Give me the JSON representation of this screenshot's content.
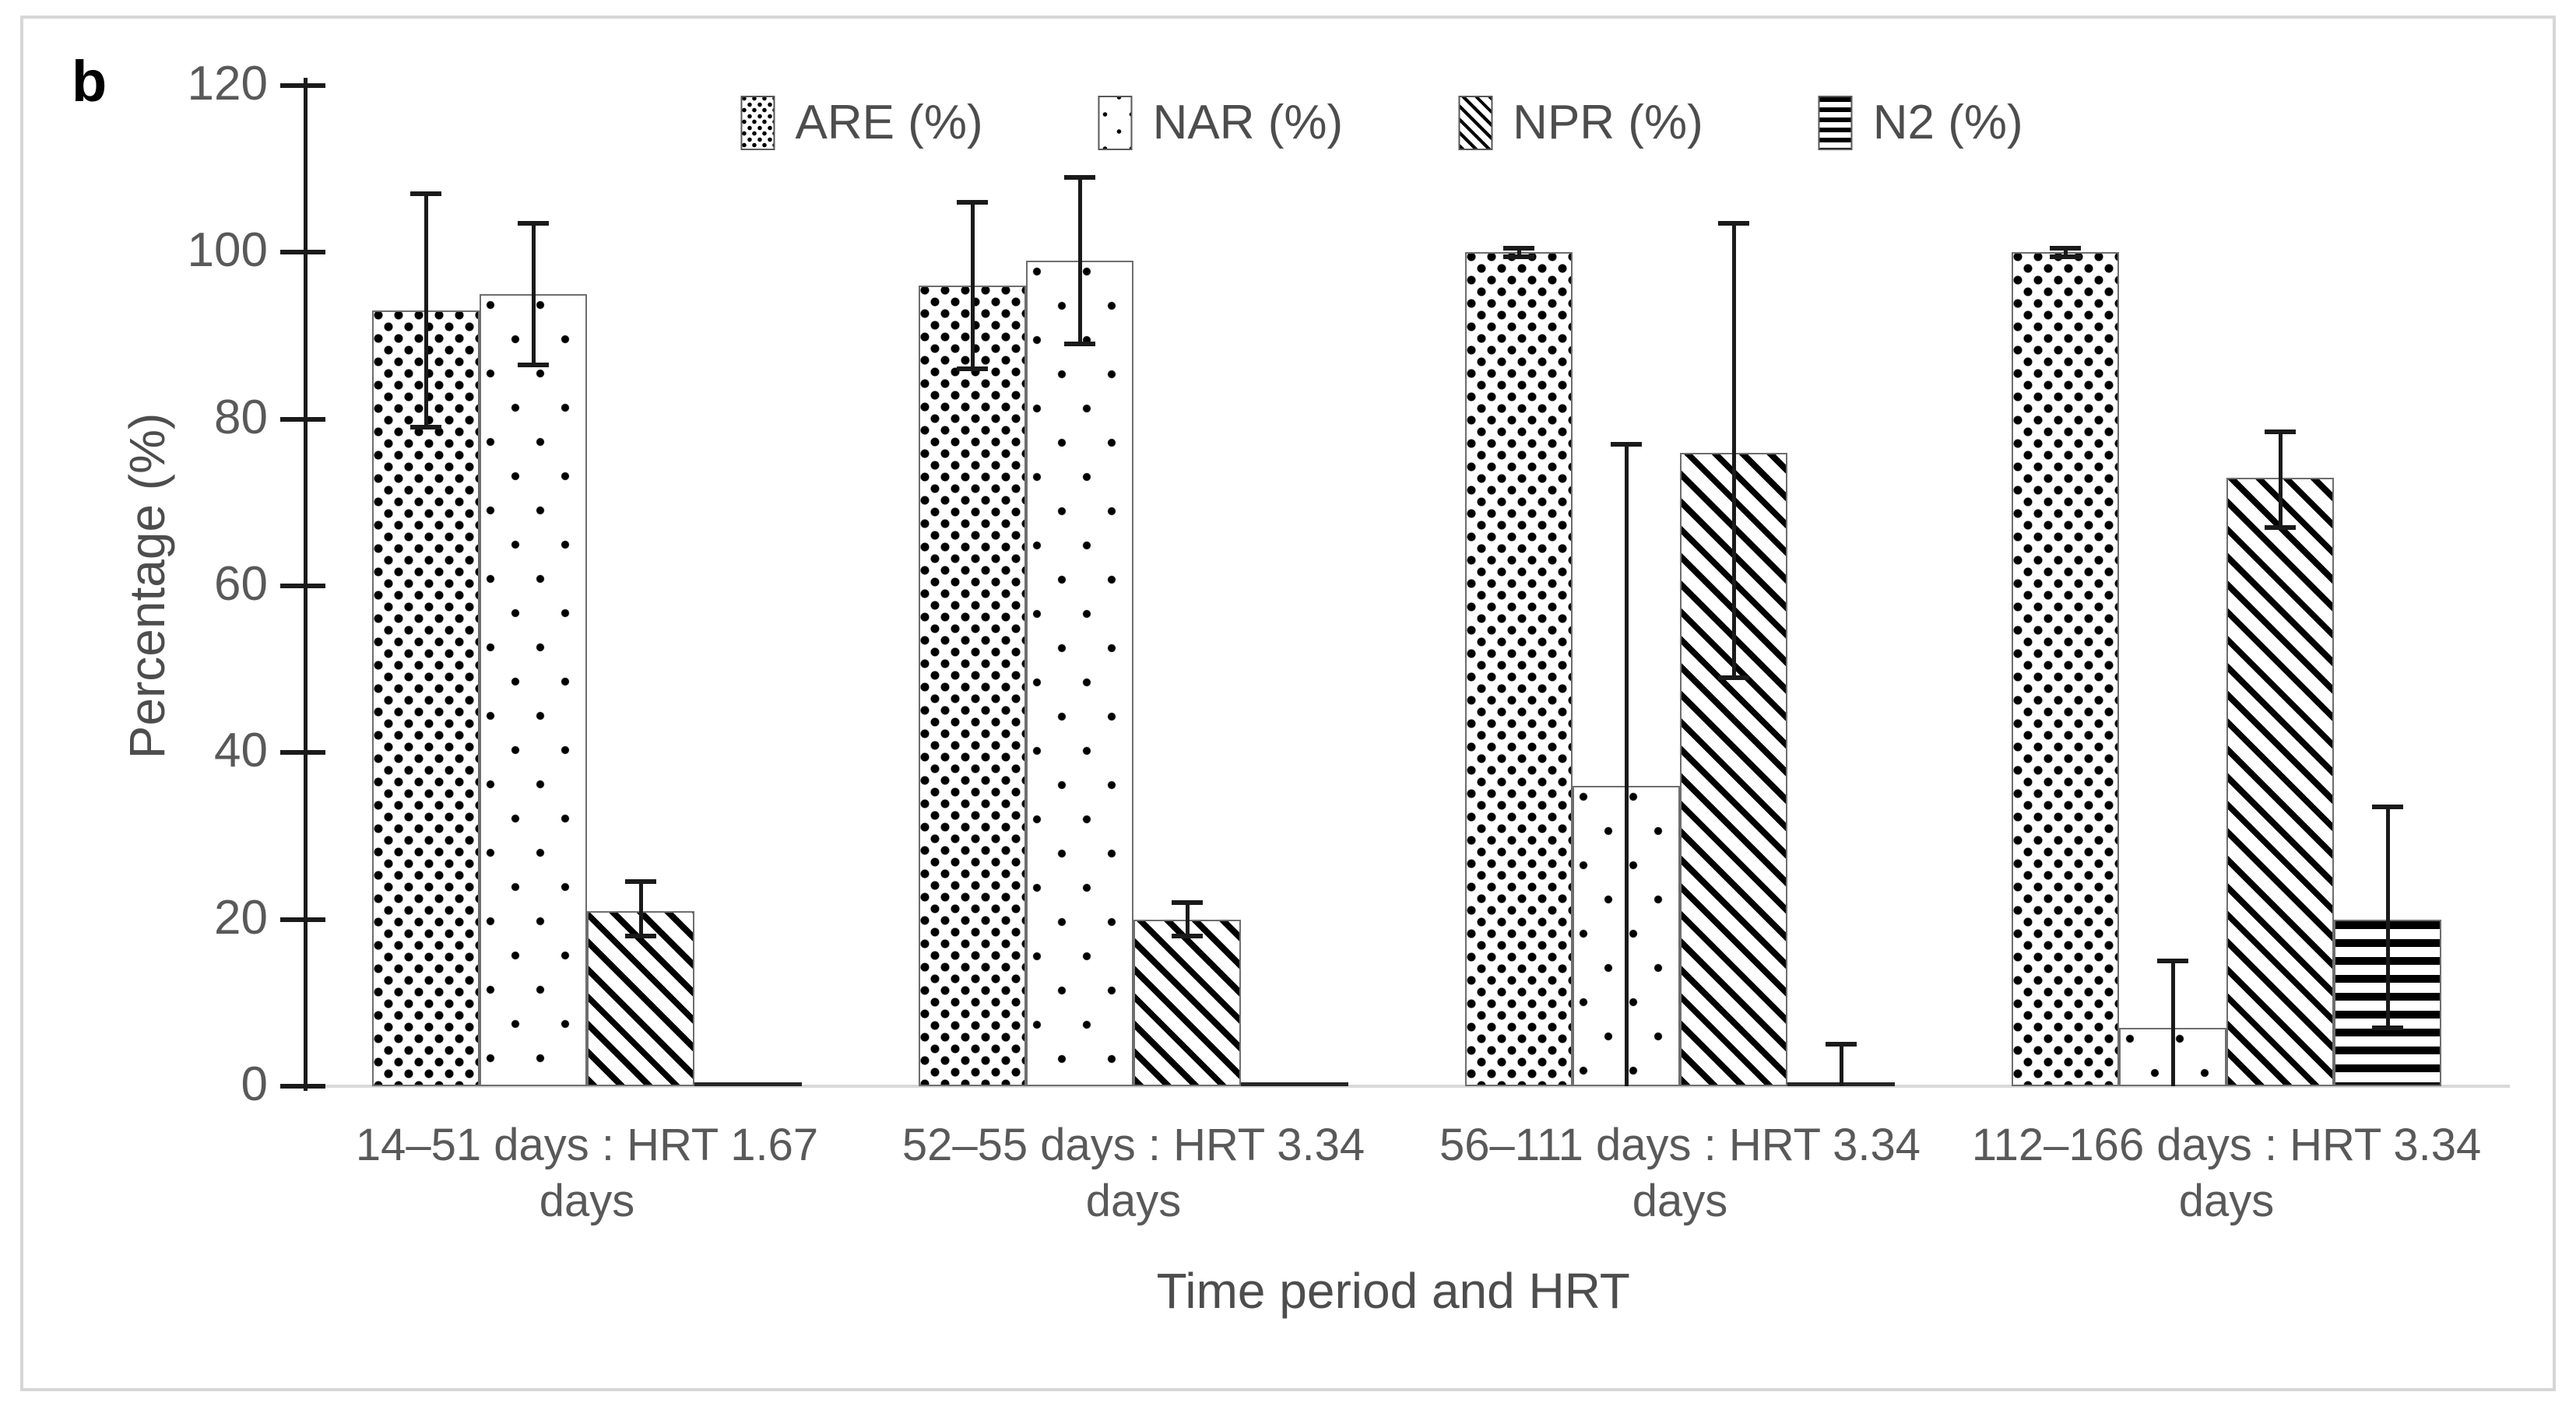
{
  "panel_label": "b",
  "y_axis": {
    "title": "Percentage (%)",
    "ticks": [
      0,
      20,
      40,
      60,
      80,
      100,
      120
    ]
  },
  "x_axis": {
    "title": "Time period and HRT"
  },
  "colors": {
    "text_primary": "#4d4d4d",
    "text_secondary": "#595959",
    "axis": "#1a1a1a",
    "baseline": "#d9d9d9",
    "frame_border": "#d6d6d6",
    "bar_border": "#6e6e6e",
    "pattern_ink": "#000000",
    "background": "#ffffff"
  },
  "chart_data": {
    "type": "bar",
    "title": "",
    "xlabel": "Time period and HRT",
    "ylabel": "Percentage (%)",
    "ylim": [
      0,
      120
    ],
    "grid": false,
    "legend_position": "top-center",
    "error_bars": true,
    "categories": [
      "14–51 days : HRT 1.67 days",
      "52–55 days : HRT 3.34 days",
      "56–111 days : HRT 3.34 days",
      "112–166 days : HRT 3.34\ndays"
    ],
    "series": [
      {
        "name": "ARE (%)",
        "key": "are",
        "pattern": "dense-dots",
        "values": [
          93,
          96,
          100,
          100
        ],
        "error_low": [
          79,
          86,
          99.5,
          99.5
        ],
        "error_high": [
          107,
          106,
          100.5,
          100.5
        ]
      },
      {
        "name": "NAR (%)",
        "key": "nar",
        "pattern": "sparse-dots",
        "values": [
          95,
          99,
          36,
          7
        ],
        "error_low": [
          86.5,
          89,
          0,
          0
        ],
        "error_high": [
          103.5,
          109,
          77,
          15
        ]
      },
      {
        "name": "NPR (%)",
        "key": "npr",
        "pattern": "diag-stripes",
        "values": [
          21,
          20,
          76,
          73
        ],
        "error_low": [
          18,
          18,
          49,
          67
        ],
        "error_high": [
          24.5,
          22,
          103.5,
          78.5
        ]
      },
      {
        "name": "N2 (%)",
        "key": "n2",
        "pattern": "horiz-stripes",
        "values": [
          0,
          0,
          0,
          20
        ],
        "error_low": [
          null,
          null,
          0,
          7
        ],
        "error_high": [
          null,
          null,
          5,
          33.5
        ]
      }
    ]
  }
}
